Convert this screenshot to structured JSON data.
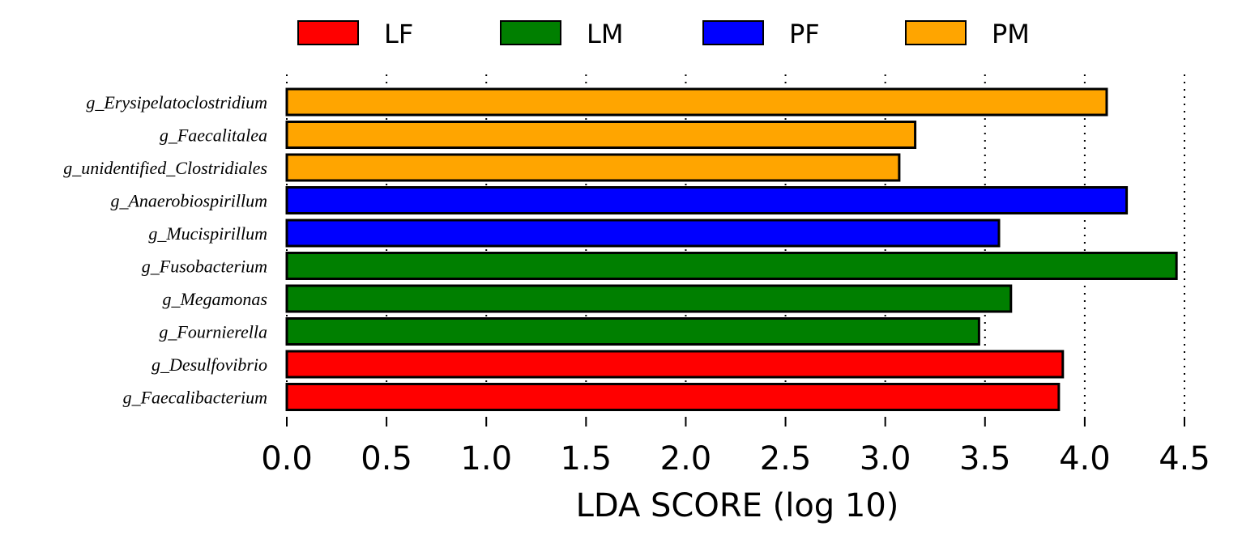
{
  "chart_data": {
    "type": "bar",
    "orientation": "horizontal",
    "title": "",
    "xlabel": "LDA SCORE (log 10)",
    "ylabel": "",
    "xlim": [
      0,
      4.5
    ],
    "xticks": [
      "0.0",
      "0.5",
      "1.0",
      "1.5",
      "2.0",
      "2.5",
      "3.0",
      "3.5",
      "4.0",
      "4.5"
    ],
    "grid": "vertical dotted",
    "legend_position": "top",
    "legend": [
      {
        "name": "LF",
        "color": "#ff0000"
      },
      {
        "name": "LM",
        "color": "#007f00"
      },
      {
        "name": "PF",
        "color": "#0000ff"
      },
      {
        "name": "PM",
        "color": "#ffa500"
      }
    ],
    "bars": [
      {
        "category": "g_Erysipelatoclostridium",
        "value": 4.11,
        "group": "PM"
      },
      {
        "category": "g_Faecalitalea",
        "value": 3.15,
        "group": "PM"
      },
      {
        "category": "g_unidentified_Clostridiales",
        "value": 3.07,
        "group": "PM"
      },
      {
        "category": "g_Anaerobiospirillum",
        "value": 4.21,
        "group": "PF"
      },
      {
        "category": "g_Mucispirillum",
        "value": 3.57,
        "group": "PF"
      },
      {
        "category": "g_Fusobacterium",
        "value": 4.46,
        "group": "LM"
      },
      {
        "category": "g_Megamonas",
        "value": 3.63,
        "group": "LM"
      },
      {
        "category": "g_Fournierella",
        "value": 3.47,
        "group": "LM"
      },
      {
        "category": "g_Desulfovibrio",
        "value": 3.89,
        "group": "LF"
      },
      {
        "category": "g_Faecalibacterium",
        "value": 3.87,
        "group": "LF"
      }
    ]
  }
}
